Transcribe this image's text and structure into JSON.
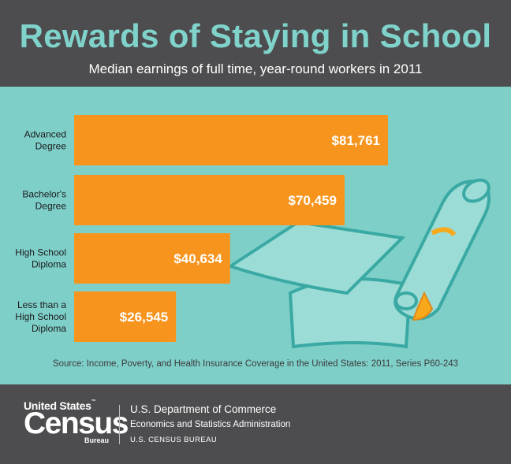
{
  "header": {
    "title": "Rewards of Staying in School",
    "subtitle": "Median earnings of full time, year-round workers in 2011"
  },
  "chart_data": {
    "type": "bar",
    "orientation": "horizontal",
    "title": "Rewards of Staying in School",
    "subtitle": "Median earnings of full time, year-round workers in 2011",
    "categories": [
      "Advanced Degree",
      "Bachelor's Degree",
      "High School Diploma",
      "Less than a High School Diploma"
    ],
    "category_lines": [
      [
        "Advanced",
        "Degree"
      ],
      [
        "Bachelor's",
        "Degree"
      ],
      [
        "High School",
        "Diploma"
      ],
      [
        "Less than a",
        "High School",
        "Diploma"
      ]
    ],
    "values": [
      81761,
      70459,
      40634,
      26545
    ],
    "value_labels": [
      "$81,761",
      "$70,459",
      "$40,634",
      "$26,545"
    ],
    "xlim": [
      0,
      81761
    ],
    "grid": false,
    "legend": "none",
    "bar_color": "#f7941d"
  },
  "source": "Source: Income, Poverty, and Health Insurance Coverage in the United States: 2011, Series P60-243",
  "footer": {
    "logo_top": "United States",
    "logo_tm": "™",
    "logo_main": "Census",
    "logo_bottom": "Bureau",
    "dept_line1": "U.S. Department of Commerce",
    "dept_line2": "Economics and Statistics Administration",
    "dept_line3": "U.S. CENSUS BUREAU"
  },
  "colors": {
    "header_bg": "#4d4d4f",
    "title": "#7fd3cb",
    "chart_bg": "#7fcfc9",
    "bar": "#f7941d",
    "cap": "#9bdcd6",
    "cap_outline": "#3aa9a3",
    "tassel": "#f7a81b"
  },
  "decoration": {
    "image": "graduation-cap-and-diploma-illustration"
  }
}
